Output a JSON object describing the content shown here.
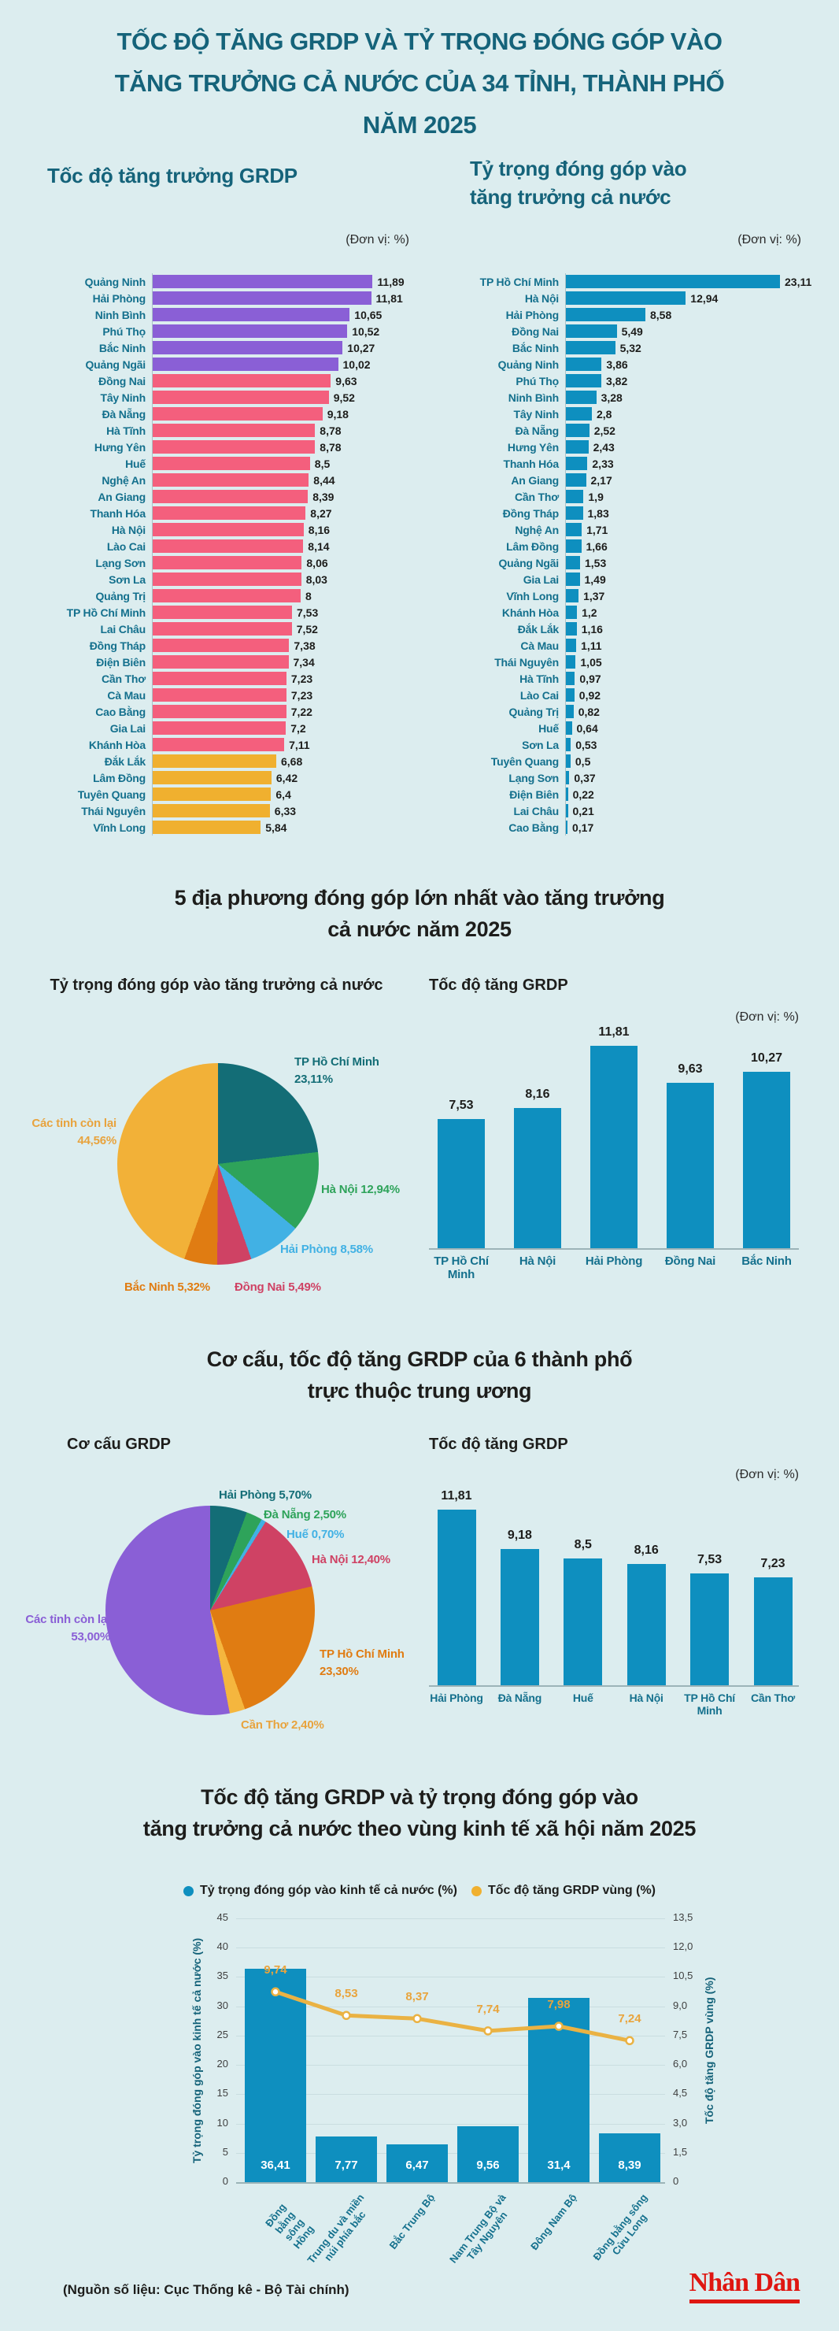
{
  "page": {
    "title_lines": [
      "TỐC ĐỘ TĂNG GRDP VÀ TỶ TRỌNG ĐÓNG GÓP VÀO",
      "TĂNG TRƯỞNG CẢ NƯỚC CỦA 34 TỈNH, THÀNH PHỐ",
      "NĂM 2025"
    ],
    "source_note": "(Nguồn số liệu: Cục Thống kê - Bộ Tài chính)",
    "brand": "Nhân Dân"
  },
  "colors": {
    "background": "#dcedef",
    "title_teal": "#15637a",
    "label_teal": "#14708d",
    "text_dark": "#1d1d1b",
    "bar_purple": "#8a5fd6",
    "bar_pink": "#f45f7d",
    "bar_yellow": "#f0b02f",
    "bar_teal": "#0e8fbf",
    "line_yellow": "#eab243",
    "pie_teal": "#136d76",
    "pie_green": "#2ea35a",
    "pie_blue": "#41b1e4",
    "pie_crimson": "#cf4264",
    "pie_orange": "#e07c12",
    "pie_amber": "#f2b138",
    "pie_purple": "#8a5fd6",
    "brand_red": "#df1712"
  },
  "section1": {
    "left": {
      "title": "Tốc độ tăng trưởng GRDP",
      "unit": "(Đơn vị: %)",
      "rows": [
        {
          "label": "Quảng Ninh",
          "display": "11,89",
          "value": 11.89,
          "color": "#8a5fd6"
        },
        {
          "label": "Hải Phòng",
          "display": "11,81",
          "value": 11.81,
          "color": "#8a5fd6"
        },
        {
          "label": "Ninh Bình",
          "display": "10,65",
          "value": 10.65,
          "color": "#8a5fd6"
        },
        {
          "label": "Phú Thọ",
          "display": "10,52",
          "value": 10.52,
          "color": "#8a5fd6"
        },
        {
          "label": "Bắc Ninh",
          "display": "10,27",
          "value": 10.27,
          "color": "#8a5fd6"
        },
        {
          "label": "Quảng Ngãi",
          "display": "10,02",
          "value": 10.02,
          "color": "#8a5fd6"
        },
        {
          "label": "Đồng Nai",
          "display": "9,63",
          "value": 9.63,
          "color": "#f45f7d"
        },
        {
          "label": "Tây Ninh",
          "display": "9,52",
          "value": 9.52,
          "color": "#f45f7d"
        },
        {
          "label": "Đà Nẵng",
          "display": "9,18",
          "value": 9.18,
          "color": "#f45f7d"
        },
        {
          "label": "Hà Tĩnh",
          "display": "8,78",
          "value": 8.78,
          "color": "#f45f7d"
        },
        {
          "label": "Hưng Yên",
          "display": "8,78",
          "value": 8.78,
          "color": "#f45f7d"
        },
        {
          "label": "Huế",
          "display": "8,5",
          "value": 8.5,
          "color": "#f45f7d"
        },
        {
          "label": "Nghệ An",
          "display": "8,44",
          "value": 8.44,
          "color": "#f45f7d"
        },
        {
          "label": "An Giang",
          "display": "8,39",
          "value": 8.39,
          "color": "#f45f7d"
        },
        {
          "label": "Thanh Hóa",
          "display": "8,27",
          "value": 8.27,
          "color": "#f45f7d"
        },
        {
          "label": "Hà Nội",
          "display": "8,16",
          "value": 8.16,
          "color": "#f45f7d"
        },
        {
          "label": "Lào Cai",
          "display": "8,14",
          "value": 8.14,
          "color": "#f45f7d"
        },
        {
          "label": "Lạng Sơn",
          "display": "8,06",
          "value": 8.06,
          "color": "#f45f7d"
        },
        {
          "label": "Sơn La",
          "display": "8,03",
          "value": 8.03,
          "color": "#f45f7d"
        },
        {
          "label": "Quảng Trị",
          "display": "8",
          "value": 8.0,
          "color": "#f45f7d"
        },
        {
          "label": "TP Hồ Chí Minh",
          "display": "7,53",
          "value": 7.53,
          "color": "#f45f7d"
        },
        {
          "label": "Lai Châu",
          "display": "7,52",
          "value": 7.52,
          "color": "#f45f7d"
        },
        {
          "label": "Đồng Tháp",
          "display": "7,38",
          "value": 7.38,
          "color": "#f45f7d"
        },
        {
          "label": "Điện Biên",
          "display": "7,34",
          "value": 7.34,
          "color": "#f45f7d"
        },
        {
          "label": "Cần Thơ",
          "display": "7,23",
          "value": 7.23,
          "color": "#f45f7d"
        },
        {
          "label": "Cà Mau",
          "display": "7,23",
          "value": 7.23,
          "color": "#f45f7d"
        },
        {
          "label": "Cao Bằng",
          "display": "7,22",
          "value": 7.22,
          "color": "#f45f7d"
        },
        {
          "label": "Gia Lai",
          "display": "7,2",
          "value": 7.2,
          "color": "#f45f7d"
        },
        {
          "label": "Khánh Hòa",
          "display": "7,11",
          "value": 7.11,
          "color": "#f45f7d"
        },
        {
          "label": "Đắk Lắk",
          "display": "6,68",
          "value": 6.68,
          "color": "#f0b02f"
        },
        {
          "label": "Lâm Đồng",
          "display": "6,42",
          "value": 6.42,
          "color": "#f0b02f"
        },
        {
          "label": "Tuyên Quang",
          "display": "6,4",
          "value": 6.4,
          "color": "#f0b02f"
        },
        {
          "label": "Thái Nguyên",
          "display": "6,33",
          "value": 6.33,
          "color": "#f0b02f"
        },
        {
          "label": "Vĩnh Long",
          "display": "5,84",
          "value": 5.84,
          "color": "#f0b02f"
        }
      ]
    },
    "right": {
      "title_lines": [
        "Tỷ trọng đóng góp vào",
        "tăng trưởng cả nước"
      ],
      "unit": "(Đơn vị: %)",
      "rows": [
        {
          "label": "TP Hồ Chí Minh",
          "display": "23,11",
          "value": 23.11
        },
        {
          "label": "Hà Nội",
          "display": "12,94",
          "value": 12.94
        },
        {
          "label": "Hải Phòng",
          "display": "8,58",
          "value": 8.58
        },
        {
          "label": "Đồng Nai",
          "display": "5,49",
          "value": 5.49
        },
        {
          "label": "Bắc Ninh",
          "display": "5,32",
          "value": 5.32
        },
        {
          "label": "Quảng Ninh",
          "display": "3,86",
          "value": 3.86
        },
        {
          "label": "Phú Thọ",
          "display": "3,82",
          "value": 3.82
        },
        {
          "label": "Ninh Bình",
          "display": "3,28",
          "value": 3.28
        },
        {
          "label": "Tây Ninh",
          "display": "2,8",
          "value": 2.8
        },
        {
          "label": "Đà Nẵng",
          "display": "2,52",
          "value": 2.52
        },
        {
          "label": "Hưng Yên",
          "display": "2,43",
          "value": 2.43
        },
        {
          "label": "Thanh Hóa",
          "display": "2,33",
          "value": 2.33
        },
        {
          "label": "An Giang",
          "display": "2,17",
          "value": 2.17
        },
        {
          "label": "Cần Thơ",
          "display": "1,9",
          "value": 1.9
        },
        {
          "label": "Đồng Tháp",
          "display": "1,83",
          "value": 1.83
        },
        {
          "label": "Nghệ An",
          "display": "1,71",
          "value": 1.71
        },
        {
          "label": "Lâm Đồng",
          "display": "1,66",
          "value": 1.66
        },
        {
          "label": "Quảng Ngãi",
          "display": "1,53",
          "value": 1.53
        },
        {
          "label": "Gia Lai",
          "display": "1,49",
          "value": 1.49
        },
        {
          "label": "Vĩnh Long",
          "display": "1,37",
          "value": 1.37
        },
        {
          "label": "Khánh Hòa",
          "display": "1,2",
          "value": 1.2
        },
        {
          "label": "Đắk Lắk",
          "display": "1,16",
          "value": 1.16
        },
        {
          "label": "Cà Mau",
          "display": "1,11",
          "value": 1.11
        },
        {
          "label": "Thái Nguyên",
          "display": "1,05",
          "value": 1.05
        },
        {
          "label": "Hà Tĩnh",
          "display": "0,97",
          "value": 0.97
        },
        {
          "label": "Lào Cai",
          "display": "0,92",
          "value": 0.92
        },
        {
          "label": "Quảng Trị",
          "display": "0,82",
          "value": 0.82
        },
        {
          "label": "Huế",
          "display": "0,64",
          "value": 0.64
        },
        {
          "label": "Sơn La",
          "display": "0,53",
          "value": 0.53
        },
        {
          "label": "Tuyên Quang",
          "display": "0,5",
          "value": 0.5
        },
        {
          "label": "Lạng Sơn",
          "display": "0,37",
          "value": 0.37
        },
        {
          "label": "Điện Biên",
          "display": "0,22",
          "value": 0.22
        },
        {
          "label": "Lai Châu",
          "display": "0,21",
          "value": 0.21
        },
        {
          "label": "Cao Bằng",
          "display": "0,17",
          "value": 0.17
        }
      ]
    }
  },
  "section2": {
    "title_lines": [
      "5 địa phương đóng góp lớn nhất vào tăng trưởng",
      "cả nước năm 2025"
    ],
    "pie": {
      "title": "Tỷ trọng đóng góp vào tăng trưởng cả nước",
      "slices": [
        {
          "label_text": "TP Hồ Chí Minh\n23,11%",
          "pct": 23.11,
          "color": "#136d76"
        },
        {
          "label_text": "Hà Nội 12,94%",
          "pct": 12.94,
          "color": "#2ea35a"
        },
        {
          "label_text": "Hải Phòng 8,58%",
          "pct": 8.58,
          "color": "#41b1e4"
        },
        {
          "label_text": "Đồng Nai 5,49%",
          "pct": 5.49,
          "color": "#cf4264"
        },
        {
          "label_text": "Bắc Ninh 5,32%",
          "pct": 5.32,
          "color": "#e07c12"
        },
        {
          "label_text": "Các tỉnh còn lại\n44,56%",
          "pct": 44.56,
          "color": "#f2b138",
          "label_color": "#e8a33d"
        }
      ]
    },
    "bars": {
      "title": "Tốc độ tăng GRDP",
      "unit": "(Đơn vị: %)",
      "items": [
        {
          "label": "TP Hồ Chí Minh",
          "display": "7,53",
          "value": 7.53
        },
        {
          "label": "Hà Nội",
          "display": "8,16",
          "value": 8.16
        },
        {
          "label": "Hải Phòng",
          "display": "11,81",
          "value": 11.81
        },
        {
          "label": "Đồng Nai",
          "display": "9,63",
          "value": 9.63
        },
        {
          "label": "Bắc Ninh",
          "display": "10,27",
          "value": 10.27
        }
      ]
    }
  },
  "section3": {
    "title_lines": [
      "Cơ cấu, tốc độ tăng GRDP của 6 thành phố",
      "trực thuộc trung ương"
    ],
    "pie": {
      "title": "Cơ cấu GRDP",
      "slices": [
        {
          "label_text": "Hải Phòng 5,70%",
          "pct": 5.7,
          "color": "#136d76"
        },
        {
          "label_text": "Đà Nẵng 2,50%",
          "pct": 2.5,
          "color": "#2ea35a"
        },
        {
          "label_text": "Huế 0,70%",
          "pct": 0.7,
          "color": "#41b1e4"
        },
        {
          "label_text": "Hà Nội 12,40%",
          "pct": 12.4,
          "color": "#cf4264"
        },
        {
          "label_text": "TP Hồ Chí Minh\n23,30%",
          "pct": 23.3,
          "color": "#e07c12"
        },
        {
          "label_text": "Cần Thơ 2,40%",
          "pct": 2.4,
          "color": "#f5b63e",
          "label_color": "#e8a33d"
        },
        {
          "label_text": "Các tỉnh còn lại\n53,00%",
          "pct": 53.0,
          "color": "#8a5fd6"
        }
      ]
    },
    "bars": {
      "title": "Tốc độ tăng GRDP",
      "unit": "(Đơn vị: %)",
      "items": [
        {
          "label": "Hải Phòng",
          "display": "11,81",
          "value": 11.81
        },
        {
          "label": "Đà Nẵng",
          "display": "9,18",
          "value": 9.18
        },
        {
          "label": "Huế",
          "display": "8,5",
          "value": 8.5
        },
        {
          "label": "Hà Nội",
          "display": "8,16",
          "value": 8.16
        },
        {
          "label": "TP Hồ Chí Minh",
          "display": "7,53",
          "value": 7.53
        },
        {
          "label": "Cần Thơ",
          "display": "7,23",
          "value": 7.23
        }
      ]
    }
  },
  "section4": {
    "title_lines": [
      "Tốc độ tăng GRDP và tỷ trọng đóng góp vào",
      "tăng trưởng cả nước theo vùng kinh tế xã hội năm 2025"
    ],
    "legend": [
      {
        "label": "Tỷ trọng đóng góp vào kinh tế cả nước (%)",
        "color": "#0e8fbf"
      },
      {
        "label": "Tốc độ tăng GRDP vùng (%)",
        "color": "#f0b02f"
      }
    ],
    "left_axis": {
      "title": "Tỷ trọng đóng góp vào kinh tế cả nước (%)",
      "max": 45,
      "ticks": [
        "45",
        "40",
        "35",
        "30",
        "25",
        "20",
        "15",
        "10",
        "5",
        "0"
      ]
    },
    "right_axis": {
      "title": "Tốc độ tăng GRDP vùng (%)",
      "max": 13.5,
      "ticks": [
        "13,5",
        "12,0",
        "10,5",
        "9,0",
        "7,5",
        "6,0",
        "4,5",
        "3,0",
        "1,5",
        "0"
      ]
    },
    "categories": [
      "Đồng bằng sông\nHồng",
      "Trung du và miền\nnúi phía bắc",
      "Bắc Trung Bộ",
      "Nam Trung Bộ và\nTây Nguyên",
      "Đông Nam Bộ",
      "Đồng bằng sông\nCửu Long"
    ],
    "bars": [
      {
        "display": "36,41",
        "value": 36.41
      },
      {
        "display": "7,77",
        "value": 7.77
      },
      {
        "display": "6,47",
        "value": 6.47
      },
      {
        "display": "9,56",
        "value": 9.56
      },
      {
        "display": "31,4",
        "value": 31.4
      },
      {
        "display": "8,39",
        "value": 8.39
      }
    ],
    "line": [
      {
        "display": "9,74",
        "value": 9.74
      },
      {
        "display": "8,53",
        "value": 8.53
      },
      {
        "display": "8,37",
        "value": 8.37
      },
      {
        "display": "7,74",
        "value": 7.74
      },
      {
        "display": "7,98",
        "value": 7.98
      },
      {
        "display": "7,24",
        "value": 7.24
      }
    ]
  },
  "chart_data": [
    {
      "type": "bar",
      "orientation": "horizontal",
      "title": "Tốc độ tăng trưởng GRDP",
      "unit": "%",
      "categories": [
        "Quảng Ninh",
        "Hải Phòng",
        "Ninh Bình",
        "Phú Thọ",
        "Bắc Ninh",
        "Quảng Ngãi",
        "Đồng Nai",
        "Tây Ninh",
        "Đà Nẵng",
        "Hà Tĩnh",
        "Hưng Yên",
        "Huế",
        "Nghệ An",
        "An Giang",
        "Thanh Hóa",
        "Hà Nội",
        "Lào Cai",
        "Lạng Sơn",
        "Sơn La",
        "Quảng Trị",
        "TP Hồ Chí Minh",
        "Lai Châu",
        "Đồng Tháp",
        "Điện Biên",
        "Cần Thơ",
        "Cà Mau",
        "Cao Bằng",
        "Gia Lai",
        "Khánh Hòa",
        "Đắk Lắk",
        "Lâm Đồng",
        "Tuyên Quang",
        "Thái Nguyên",
        "Vĩnh Long"
      ],
      "values": [
        11.89,
        11.81,
        10.65,
        10.52,
        10.27,
        10.02,
        9.63,
        9.52,
        9.18,
        8.78,
        8.78,
        8.5,
        8.44,
        8.39,
        8.27,
        8.16,
        8.14,
        8.06,
        8.03,
        8.0,
        7.53,
        7.52,
        7.38,
        7.34,
        7.23,
        7.23,
        7.22,
        7.2,
        7.11,
        6.68,
        6.42,
        6.4,
        6.33,
        5.84
      ]
    },
    {
      "type": "bar",
      "orientation": "horizontal",
      "title": "Tỷ trọng đóng góp vào tăng trưởng cả nước",
      "unit": "%",
      "categories": [
        "TP Hồ Chí Minh",
        "Hà Nội",
        "Hải Phòng",
        "Đồng Nai",
        "Bắc Ninh",
        "Quảng Ninh",
        "Phú Thọ",
        "Ninh Bình",
        "Tây Ninh",
        "Đà Nẵng",
        "Hưng Yên",
        "Thanh Hóa",
        "An Giang",
        "Cần Thơ",
        "Đồng Tháp",
        "Nghệ An",
        "Lâm Đồng",
        "Quảng Ngãi",
        "Gia Lai",
        "Vĩnh Long",
        "Khánh Hòa",
        "Đắk Lắk",
        "Cà Mau",
        "Thái Nguyên",
        "Hà Tĩnh",
        "Lào Cai",
        "Quảng Trị",
        "Huế",
        "Sơn La",
        "Tuyên Quang",
        "Lạng Sơn",
        "Điện Biên",
        "Lai Châu",
        "Cao Bằng"
      ],
      "values": [
        23.11,
        12.94,
        8.58,
        5.49,
        5.32,
        3.86,
        3.82,
        3.28,
        2.8,
        2.52,
        2.43,
        2.33,
        2.17,
        1.9,
        1.83,
        1.71,
        1.66,
        1.53,
        1.49,
        1.37,
        1.2,
        1.16,
        1.11,
        1.05,
        0.97,
        0.92,
        0.82,
        0.64,
        0.53,
        0.5,
        0.37,
        0.22,
        0.21,
        0.17
      ]
    },
    {
      "type": "pie",
      "title": "Tỷ trọng đóng góp vào tăng trưởng cả nước (5 địa phương lớn nhất, 2025)",
      "labels": [
        "TP Hồ Chí Minh",
        "Hà Nội",
        "Hải Phòng",
        "Đồng Nai",
        "Bắc Ninh",
        "Các tỉnh còn lại"
      ],
      "values": [
        23.11,
        12.94,
        8.58,
        5.49,
        5.32,
        44.56
      ]
    },
    {
      "type": "bar",
      "title": "Tốc độ tăng GRDP (5 địa phương)",
      "unit": "%",
      "categories": [
        "TP Hồ Chí Minh",
        "Hà Nội",
        "Hải Phòng",
        "Đồng Nai",
        "Bắc Ninh"
      ],
      "values": [
        7.53,
        8.16,
        11.81,
        9.63,
        10.27
      ]
    },
    {
      "type": "pie",
      "title": "Cơ cấu GRDP (6 thành phố trực thuộc trung ương)",
      "labels": [
        "Hải Phòng",
        "Đà Nẵng",
        "Huế",
        "Hà Nội",
        "TP Hồ Chí Minh",
        "Cần Thơ",
        "Các tỉnh còn lại"
      ],
      "values": [
        5.7,
        2.5,
        0.7,
        12.4,
        23.3,
        2.4,
        53.0
      ]
    },
    {
      "type": "bar",
      "title": "Tốc độ tăng GRDP (6 thành phố)",
      "unit": "%",
      "categories": [
        "Hải Phòng",
        "Đà Nẵng",
        "Huế",
        "Hà Nội",
        "TP Hồ Chí Minh",
        "Cần Thơ"
      ],
      "values": [
        11.81,
        9.18,
        8.5,
        8.16,
        7.53,
        7.23
      ]
    },
    {
      "type": "combo",
      "title": "Tốc độ tăng GRDP và tỷ trọng đóng góp vào tăng trưởng cả nước theo vùng kinh tế xã hội năm 2025",
      "categories": [
        "Đồng bằng sông Hồng",
        "Trung du và miền núi phía bắc",
        "Bắc Trung Bộ",
        "Nam Trung Bộ và Tây Nguyên",
        "Đông Nam Bộ",
        "Đồng bằng sông Cửu Long"
      ],
      "series": [
        {
          "name": "Tỷ trọng đóng góp vào kinh tế cả nước (%)",
          "type": "bar",
          "values": [
            36.41,
            7.77,
            6.47,
            9.56,
            31.4,
            8.39
          ]
        },
        {
          "name": "Tốc độ tăng GRDP vùng (%)",
          "type": "line",
          "values": [
            9.74,
            8.53,
            8.37,
            7.74,
            7.98,
            7.24
          ]
        }
      ],
      "left_ylim": [
        0,
        45
      ],
      "right_ylim": [
        0,
        13.5
      ],
      "grid": true,
      "legend_position": "top"
    }
  ]
}
